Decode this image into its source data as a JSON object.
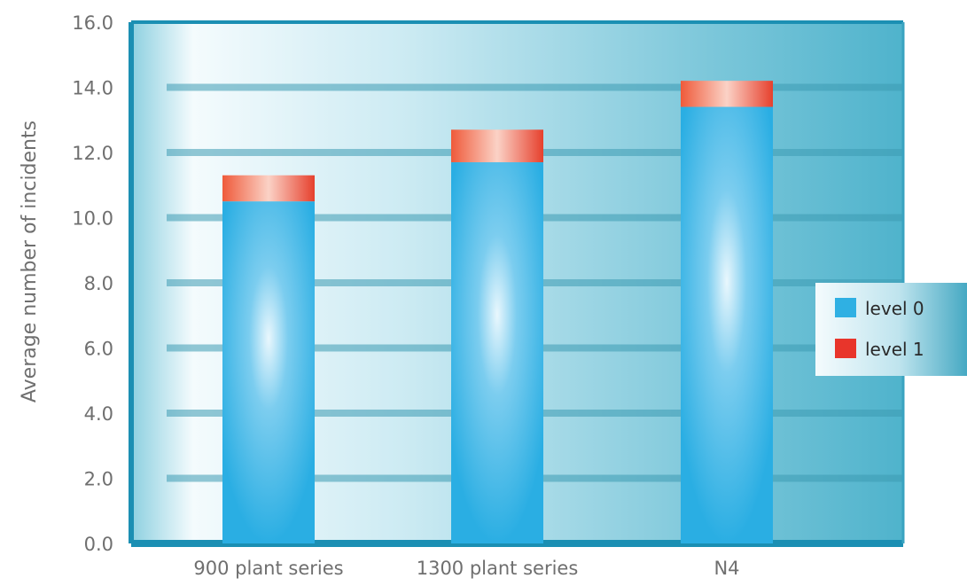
{
  "chart_data": {
    "type": "bar",
    "stacked": true,
    "ylabel": "Average number of incidents",
    "xlabel": "",
    "ylim": [
      0,
      16
    ],
    "yticks": [
      "0.0",
      "2.0",
      "4.0",
      "6.0",
      "8.0",
      "10.0",
      "12.0",
      "14.0",
      "16.0"
    ],
    "categories": [
      "900 plant series",
      "1300 plant series",
      "N4"
    ],
    "series": [
      {
        "name": "level 0",
        "values": [
          10.5,
          11.7,
          13.4
        ],
        "color": "#2fb0e3"
      },
      {
        "name": "level 1",
        "values": [
          0.8,
          1.0,
          0.8
        ],
        "color": "#e8352b"
      }
    ],
    "grid": true,
    "legend_position": "right",
    "colors": {
      "plot_frame": "#1b8fb3",
      "plot_background": "#4fb7cf",
      "gridline": "#3c9ab2"
    }
  }
}
